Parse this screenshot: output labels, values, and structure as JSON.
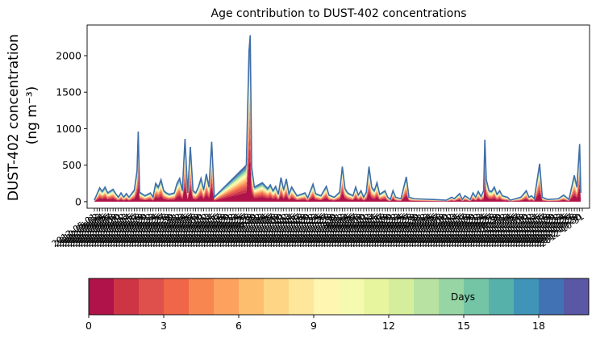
{
  "chart_data": {
    "type": "area",
    "title": "Age contribution to DUST-402 concentrations",
    "ylabel_line1": "DUST-402 concentration",
    "ylabel_line2": "(ng m⁻³)",
    "ylim": [
      -90,
      2420
    ],
    "yticks": [
      0,
      500,
      1000,
      1500,
      2000
    ],
    "x_start": "2012-05-01",
    "x_end": "2012-10-31",
    "total_series": {
      "name": "Total",
      "color": "#3f6ea8",
      "points": [
        [
          "2012-05-01",
          20
        ],
        [
          "2012-05-03",
          190
        ],
        [
          "2012-05-04",
          140
        ],
        [
          "2012-05-05",
          200
        ],
        [
          "2012-05-06",
          120
        ],
        [
          "2012-05-08",
          170
        ],
        [
          "2012-05-09",
          110
        ],
        [
          "2012-05-10",
          60
        ],
        [
          "2012-05-11",
          120
        ],
        [
          "2012-05-12",
          60
        ],
        [
          "2012-05-13",
          110
        ],
        [
          "2012-05-14",
          60
        ],
        [
          "2012-05-16",
          160
        ],
        [
          "2012-05-17",
          420
        ],
        [
          "2012-05-17",
          960
        ],
        [
          "2012-05-18",
          130
        ],
        [
          "2012-05-20",
          80
        ],
        [
          "2012-05-22",
          120
        ],
        [
          "2012-05-23",
          60
        ],
        [
          "2012-05-24",
          250
        ],
        [
          "2012-05-25",
          200
        ],
        [
          "2012-05-26",
          300
        ],
        [
          "2012-05-27",
          150
        ],
        [
          "2012-05-28",
          120
        ],
        [
          "2012-05-29",
          100
        ],
        [
          "2012-05-31",
          120
        ],
        [
          "2012-06-01",
          250
        ],
        [
          "2012-06-02",
          320
        ],
        [
          "2012-06-03",
          150
        ],
        [
          "2012-06-04",
          860
        ],
        [
          "2012-06-05",
          120
        ],
        [
          "2012-06-06",
          750
        ],
        [
          "2012-06-07",
          150
        ],
        [
          "2012-06-08",
          120
        ],
        [
          "2012-06-09",
          200
        ],
        [
          "2012-06-10",
          320
        ],
        [
          "2012-06-11",
          160
        ],
        [
          "2012-06-12",
          380
        ],
        [
          "2012-06-13",
          200
        ],
        [
          "2012-06-14",
          820
        ],
        [
          "2012-06-15",
          60
        ],
        [
          "2012-06-16",
          100
        ],
        [
          "2012-06-27",
          500
        ],
        [
          "2012-06-28",
          2060
        ],
        [
          "2012-06-28",
          2280
        ],
        [
          "2012-06-29",
          470
        ],
        [
          "2012-06-30",
          200
        ],
        [
          "2012-07-03",
          260
        ],
        [
          "2012-07-05",
          180
        ],
        [
          "2012-07-06",
          230
        ],
        [
          "2012-07-07",
          150
        ],
        [
          "2012-07-08",
          210
        ],
        [
          "2012-07-09",
          100
        ],
        [
          "2012-07-10",
          330
        ],
        [
          "2012-07-11",
          160
        ],
        [
          "2012-07-12",
          310
        ],
        [
          "2012-07-13",
          100
        ],
        [
          "2012-07-14",
          200
        ],
        [
          "2012-07-16",
          80
        ],
        [
          "2012-07-19",
          120
        ],
        [
          "2012-07-20",
          50
        ],
        [
          "2012-07-22",
          240
        ],
        [
          "2012-07-23",
          110
        ],
        [
          "2012-07-25",
          80
        ],
        [
          "2012-07-27",
          210
        ],
        [
          "2012-07-28",
          90
        ],
        [
          "2012-07-30",
          60
        ],
        [
          "2012-08-01",
          130
        ],
        [
          "2012-08-02",
          480
        ],
        [
          "2012-08-03",
          180
        ],
        [
          "2012-08-04",
          120
        ],
        [
          "2012-08-06",
          80
        ],
        [
          "2012-08-07",
          200
        ],
        [
          "2012-08-08",
          90
        ],
        [
          "2012-08-09",
          150
        ],
        [
          "2012-08-10",
          60
        ],
        [
          "2012-08-11",
          130
        ],
        [
          "2012-08-12",
          480
        ],
        [
          "2012-08-13",
          200
        ],
        [
          "2012-08-14",
          150
        ],
        [
          "2012-08-15",
          260
        ],
        [
          "2012-08-16",
          100
        ],
        [
          "2012-08-18",
          150
        ],
        [
          "2012-08-19",
          60
        ],
        [
          "2012-08-20",
          30
        ],
        [
          "2012-08-21",
          150
        ],
        [
          "2012-08-22",
          60
        ],
        [
          "2012-08-24",
          40
        ],
        [
          "2012-08-26",
          340
        ],
        [
          "2012-08-27",
          60
        ],
        [
          "2012-08-29",
          40
        ],
        [
          "2012-09-05",
          30
        ],
        [
          "2012-09-10",
          20
        ],
        [
          "2012-09-12",
          60
        ],
        [
          "2012-09-13",
          40
        ],
        [
          "2012-09-15",
          110
        ],
        [
          "2012-09-16",
          30
        ],
        [
          "2012-09-17",
          80
        ],
        [
          "2012-09-19",
          30
        ],
        [
          "2012-09-20",
          120
        ],
        [
          "2012-09-21",
          60
        ],
        [
          "2012-09-22",
          140
        ],
        [
          "2012-09-23",
          70
        ],
        [
          "2012-09-24",
          150
        ],
        [
          "2012-09-24",
          850
        ],
        [
          "2012-09-25",
          300
        ],
        [
          "2012-09-26",
          150
        ],
        [
          "2012-09-27",
          140
        ],
        [
          "2012-09-28",
          200
        ],
        [
          "2012-09-29",
          100
        ],
        [
          "2012-09-30",
          150
        ],
        [
          "2012-10-01",
          80
        ],
        [
          "2012-10-03",
          60
        ],
        [
          "2012-10-04",
          20
        ],
        [
          "2012-10-08",
          60
        ],
        [
          "2012-10-10",
          150
        ],
        [
          "2012-10-11",
          60
        ],
        [
          "2012-10-12",
          80
        ],
        [
          "2012-10-13",
          40
        ],
        [
          "2012-10-15",
          520
        ],
        [
          "2012-10-16",
          60
        ],
        [
          "2012-10-18",
          30
        ],
        [
          "2012-10-22",
          40
        ],
        [
          "2012-10-24",
          90
        ],
        [
          "2012-10-26",
          30
        ],
        [
          "2012-10-28",
          360
        ],
        [
          "2012-10-29",
          200
        ],
        [
          "2012-10-30",
          790
        ],
        [
          "2012-10-30",
          120
        ]
      ]
    },
    "age_band_profile": [
      0.28,
      0.09,
      0.08,
      0.07,
      0.06,
      0.05,
      0.05,
      0.04,
      0.04,
      0.03,
      0.03,
      0.03,
      0.03,
      0.03,
      0.03,
      0.03,
      0.03,
      0.03,
      0.03,
      0.05
    ],
    "xtick_labels": [
      "2012-05-01",
      "2012-05-02",
      "2012-05-03",
      "2012-05-04",
      "2012-05-05",
      "2012-05-06",
      "2012-05-07",
      "2012-05-08",
      "2012-05-09",
      "2012-05-10",
      "2012-05-11",
      "2012-05-12",
      "2012-05-13",
      "2012-05-14",
      "2012-05-15",
      "2012-05-16",
      "2012-05-17",
      "2012-05-18",
      "2012-05-19",
      "2012-05-20",
      "2012-05-21",
      "2012-05-22",
      "2012-05-23",
      "2012-05-24",
      "2012-05-25",
      "2012-05-26",
      "2012-05-27",
      "2012-05-28",
      "2012-05-29",
      "2012-05-30",
      "2012-05-31",
      "2012-06-01",
      "2012-06-02",
      "2012-06-03",
      "2012-06-04",
      "2012-06-05",
      "2012-06-06",
      "2012-06-07",
      "2012-06-08",
      "2012-06-09",
      "2012-06-10",
      "2012-06-11",
      "2012-06-12",
      "2012-06-13",
      "2012-06-14",
      "2012-06-15",
      "2012-06-16",
      "2012-06-17",
      "2012-06-18",
      "2012-06-19",
      "2012-06-20",
      "2012-06-21",
      "2012-06-22",
      "2012-06-23",
      "2012-06-24",
      "2012-06-25",
      "2012-06-26",
      "2012-06-27",
      "2012-06-28",
      "2012-06-29",
      "2012-06-30",
      "2012-07-01",
      "2012-07-02",
      "2012-07-03",
      "2012-07-04",
      "2012-07-05",
      "2012-07-06",
      "2012-07-07",
      "2012-07-08",
      "2012-07-09",
      "2012-07-10",
      "2012-07-11",
      "2012-07-12",
      "2012-07-13",
      "2012-07-14",
      "2012-07-15",
      "2012-07-16",
      "2012-07-17",
      "2012-07-18",
      "2012-07-19",
      "2012-07-20",
      "2012-07-21",
      "2012-07-22",
      "2012-07-23",
      "2012-07-24",
      "2012-07-25",
      "2012-07-26",
      "2012-07-27",
      "2012-07-28",
      "2012-07-29",
      "2012-07-30",
      "2012-07-31",
      "2012-08-01",
      "2012-08-02",
      "2012-08-03",
      "2012-08-04",
      "2012-08-05",
      "2012-08-06",
      "2012-08-07",
      "2012-08-08",
      "2012-08-09",
      "2012-08-10",
      "2012-08-11",
      "2012-08-12",
      "2012-08-13",
      "2012-08-14",
      "2012-08-15",
      "2012-08-16",
      "2012-08-17",
      "2012-08-18",
      "2012-08-19",
      "2012-08-20",
      "2012-08-21",
      "2012-08-22",
      "2012-08-23",
      "2012-08-24",
      "2012-08-25",
      "2012-08-26",
      "2012-08-27",
      "2012-08-28",
      "2012-08-29",
      "2012-08-30",
      "2012-08-31",
      "2012-09-01",
      "2012-09-02",
      "2012-09-03",
      "2012-09-04",
      "2012-09-05",
      "2012-09-06",
      "2012-09-07",
      "2012-09-08",
      "2012-09-09",
      "2012-09-10",
      "2012-09-11",
      "2012-09-12",
      "2012-09-13",
      "2012-09-14",
      "2012-09-15",
      "2012-09-16",
      "2012-09-17",
      "2012-09-18",
      "2012-09-19",
      "2012-09-20",
      "2012-09-21",
      "2012-09-22",
      "2012-09-23",
      "2012-09-24",
      "2012-09-25",
      "2012-09-26",
      "2012-09-27",
      "2012-09-28",
      "2012-09-29",
      "2012-09-30",
      "2012-10-01",
      "2012-10-02",
      "2012-10-03",
      "2012-10-04",
      "2012-10-05",
      "2012-10-06",
      "2012-10-07",
      "2012-10-08",
      "2012-10-09",
      "2012-10-10",
      "2012-10-11",
      "2012-10-12",
      "2012-10-13",
      "2012-10-14",
      "2012-10-15",
      "2012-10-16",
      "2012-10-17",
      "2012-10-18",
      "2012-10-19",
      "2012-10-20",
      "2012-10-21",
      "2012-10-22",
      "2012-10-23",
      "2012-10-24",
      "2012-10-25",
      "2012-10-26",
      "2012-10-27",
      "2012-10-28",
      "2012-10-29",
      "2012-10-30",
      "2012-10-31"
    ],
    "colorbar": {
      "label": "Days",
      "range": [
        0,
        20
      ],
      "ticks": [
        0,
        3,
        6,
        9,
        12,
        15,
        18
      ],
      "colors": [
        "#b0134a",
        "#cd3545",
        "#df504d",
        "#ef6648",
        "#f88650",
        "#fca25e",
        "#fdbe6e",
        "#fed585",
        "#fee79b",
        "#fef6b1",
        "#f6fab1",
        "#e7f59f",
        "#d5ee9b",
        "#b7e2a1",
        "#97d5a4",
        "#74c5a5",
        "#56b1ab",
        "#3f94b7",
        "#4173b4",
        "#5a57a4"
      ]
    }
  }
}
